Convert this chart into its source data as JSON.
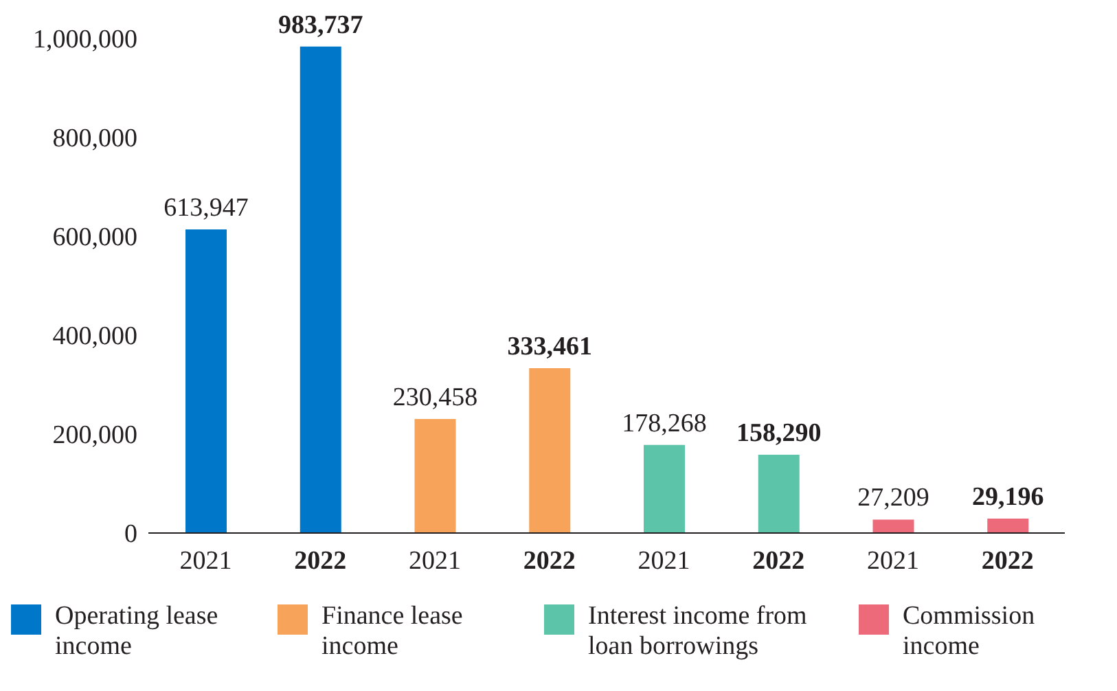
{
  "chart_data": {
    "type": "bar",
    "categories": [
      "2021",
      "2022",
      "2021",
      "2022",
      "2021",
      "2022",
      "2021",
      "2022"
    ],
    "series": [
      {
        "name": "Operating lease income",
        "color": "#0077c8",
        "values": [
          613947,
          983737,
          null,
          null,
          null,
          null,
          null,
          null
        ],
        "value_labels": [
          "613,947",
          "983,737",
          null,
          null,
          null,
          null,
          null,
          null
        ]
      },
      {
        "name": "Finance lease income",
        "color": "#f7a35a",
        "values": [
          null,
          null,
          230458,
          333461,
          null,
          null,
          null,
          null
        ],
        "value_labels": [
          null,
          null,
          "230,458",
          "333,461",
          null,
          null,
          null,
          null
        ]
      },
      {
        "name": "Interest income from loan borrowings",
        "color": "#5cc4a8",
        "values": [
          null,
          null,
          null,
          null,
          178268,
          158290,
          null,
          null
        ],
        "value_labels": [
          null,
          null,
          null,
          null,
          "178,268",
          "158,290",
          null,
          null
        ]
      },
      {
        "name": "Commission income",
        "color": "#ec6a7a",
        "values": [
          null,
          null,
          null,
          null,
          null,
          null,
          27209,
          29196
        ],
        "value_labels": [
          null,
          null,
          null,
          null,
          null,
          null,
          "27,209",
          "29,196"
        ]
      }
    ],
    "ylim": [
      0,
      1000000
    ],
    "yticks": [
      0,
      {
        "value": 200000,
        "label": "200,000"
      },
      {
        "value": 400000,
        "label": "400,000"
      },
      {
        "value": 600000,
        "label": "600,000"
      },
      {
        "value": 800000,
        "label": "800,000"
      },
      {
        "value": 1000000,
        "label": "1,000,000"
      }
    ],
    "legend": "bottom"
  }
}
